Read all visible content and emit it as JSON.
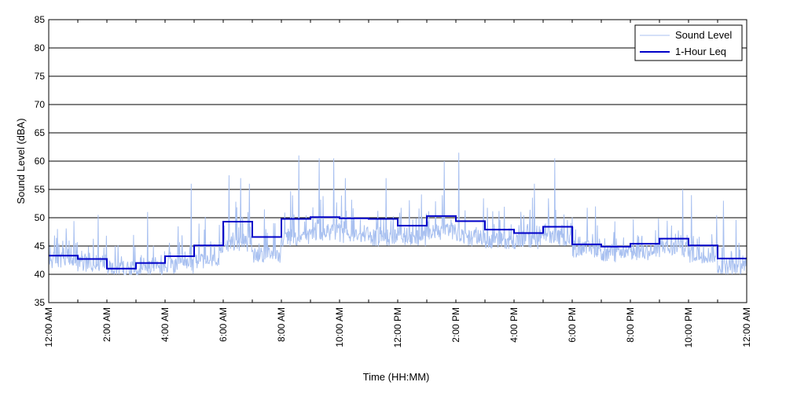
{
  "chart_data": {
    "type": "line",
    "title": "",
    "xlabel": "Time (HH:MM)",
    "ylabel": "Sound Level (dBA)",
    "ylim": [
      35,
      85
    ],
    "yticks": [
      35,
      40,
      45,
      50,
      55,
      60,
      65,
      70,
      75,
      80,
      85
    ],
    "xlim_hours": [
      0,
      24
    ],
    "xticks_hours": [
      0,
      2,
      4,
      6,
      8,
      10,
      12,
      14,
      16,
      18,
      20,
      22,
      24
    ],
    "xtick_labels": [
      "12:00 AM",
      "2:00 AM",
      "4:00 AM",
      "6:00 AM",
      "8:00 AM",
      "10:00 AM",
      "12:00 PM",
      "2:00 PM",
      "4:00 PM",
      "6:00 PM",
      "8:00 PM",
      "10:00 PM",
      "12:00 AM"
    ],
    "grid": "horizontal",
    "legend": {
      "position": "top-right",
      "entries": [
        "Sound Level",
        "1-Hour Leq"
      ]
    },
    "colors": {
      "sound_level": "#a8c0f0",
      "leq": "#0000c8"
    },
    "series": [
      {
        "name": "Sound Level",
        "hourly_base": [
          42,
          41.5,
          40.5,
          40.5,
          41,
          42,
          45,
          43,
          46,
          47,
          46.5,
          46,
          46,
          47,
          46,
          45.5,
          45.5,
          46,
          44,
          43,
          43.5,
          44,
          43,
          41
        ],
        "peaks": [
          {
            "hour": 0.3,
            "value": 48
          },
          {
            "hour": 1.7,
            "value": 50.5
          },
          {
            "hour": 3.4,
            "value": 51
          },
          {
            "hour": 4.9,
            "value": 56
          },
          {
            "hour": 6.2,
            "value": 57.5
          },
          {
            "hour": 6.6,
            "value": 57
          },
          {
            "hour": 6.9,
            "value": 56
          },
          {
            "hour": 8.6,
            "value": 61
          },
          {
            "hour": 9.3,
            "value": 60.5
          },
          {
            "hour": 9.8,
            "value": 60.5
          },
          {
            "hour": 10.2,
            "value": 57
          },
          {
            "hour": 11.6,
            "value": 57
          },
          {
            "hour": 13.6,
            "value": 60
          },
          {
            "hour": 14.1,
            "value": 61.5
          },
          {
            "hour": 16.7,
            "value": 56
          },
          {
            "hour": 17.4,
            "value": 60.5
          },
          {
            "hour": 18.8,
            "value": 52
          },
          {
            "hour": 21.8,
            "value": 55
          },
          {
            "hour": 22.1,
            "value": 54
          },
          {
            "hour": 23.2,
            "value": 53
          }
        ]
      },
      {
        "name": "1-Hour Leq",
        "hours": [
          0,
          1,
          2,
          3,
          4,
          5,
          6,
          7,
          8,
          9,
          10,
          11,
          12,
          13,
          14,
          15,
          16,
          17,
          18,
          19,
          20,
          21,
          22,
          23
        ],
        "values": [
          43.3,
          42.7,
          41.0,
          42.0,
          43.2,
          45.1,
          49.3,
          46.6,
          49.8,
          50.1,
          49.9,
          49.8,
          48.6,
          50.3,
          49.4,
          47.9,
          47.3,
          48.4,
          45.3,
          44.9,
          45.4,
          46.3,
          45.1,
          42.8
        ]
      }
    ]
  }
}
